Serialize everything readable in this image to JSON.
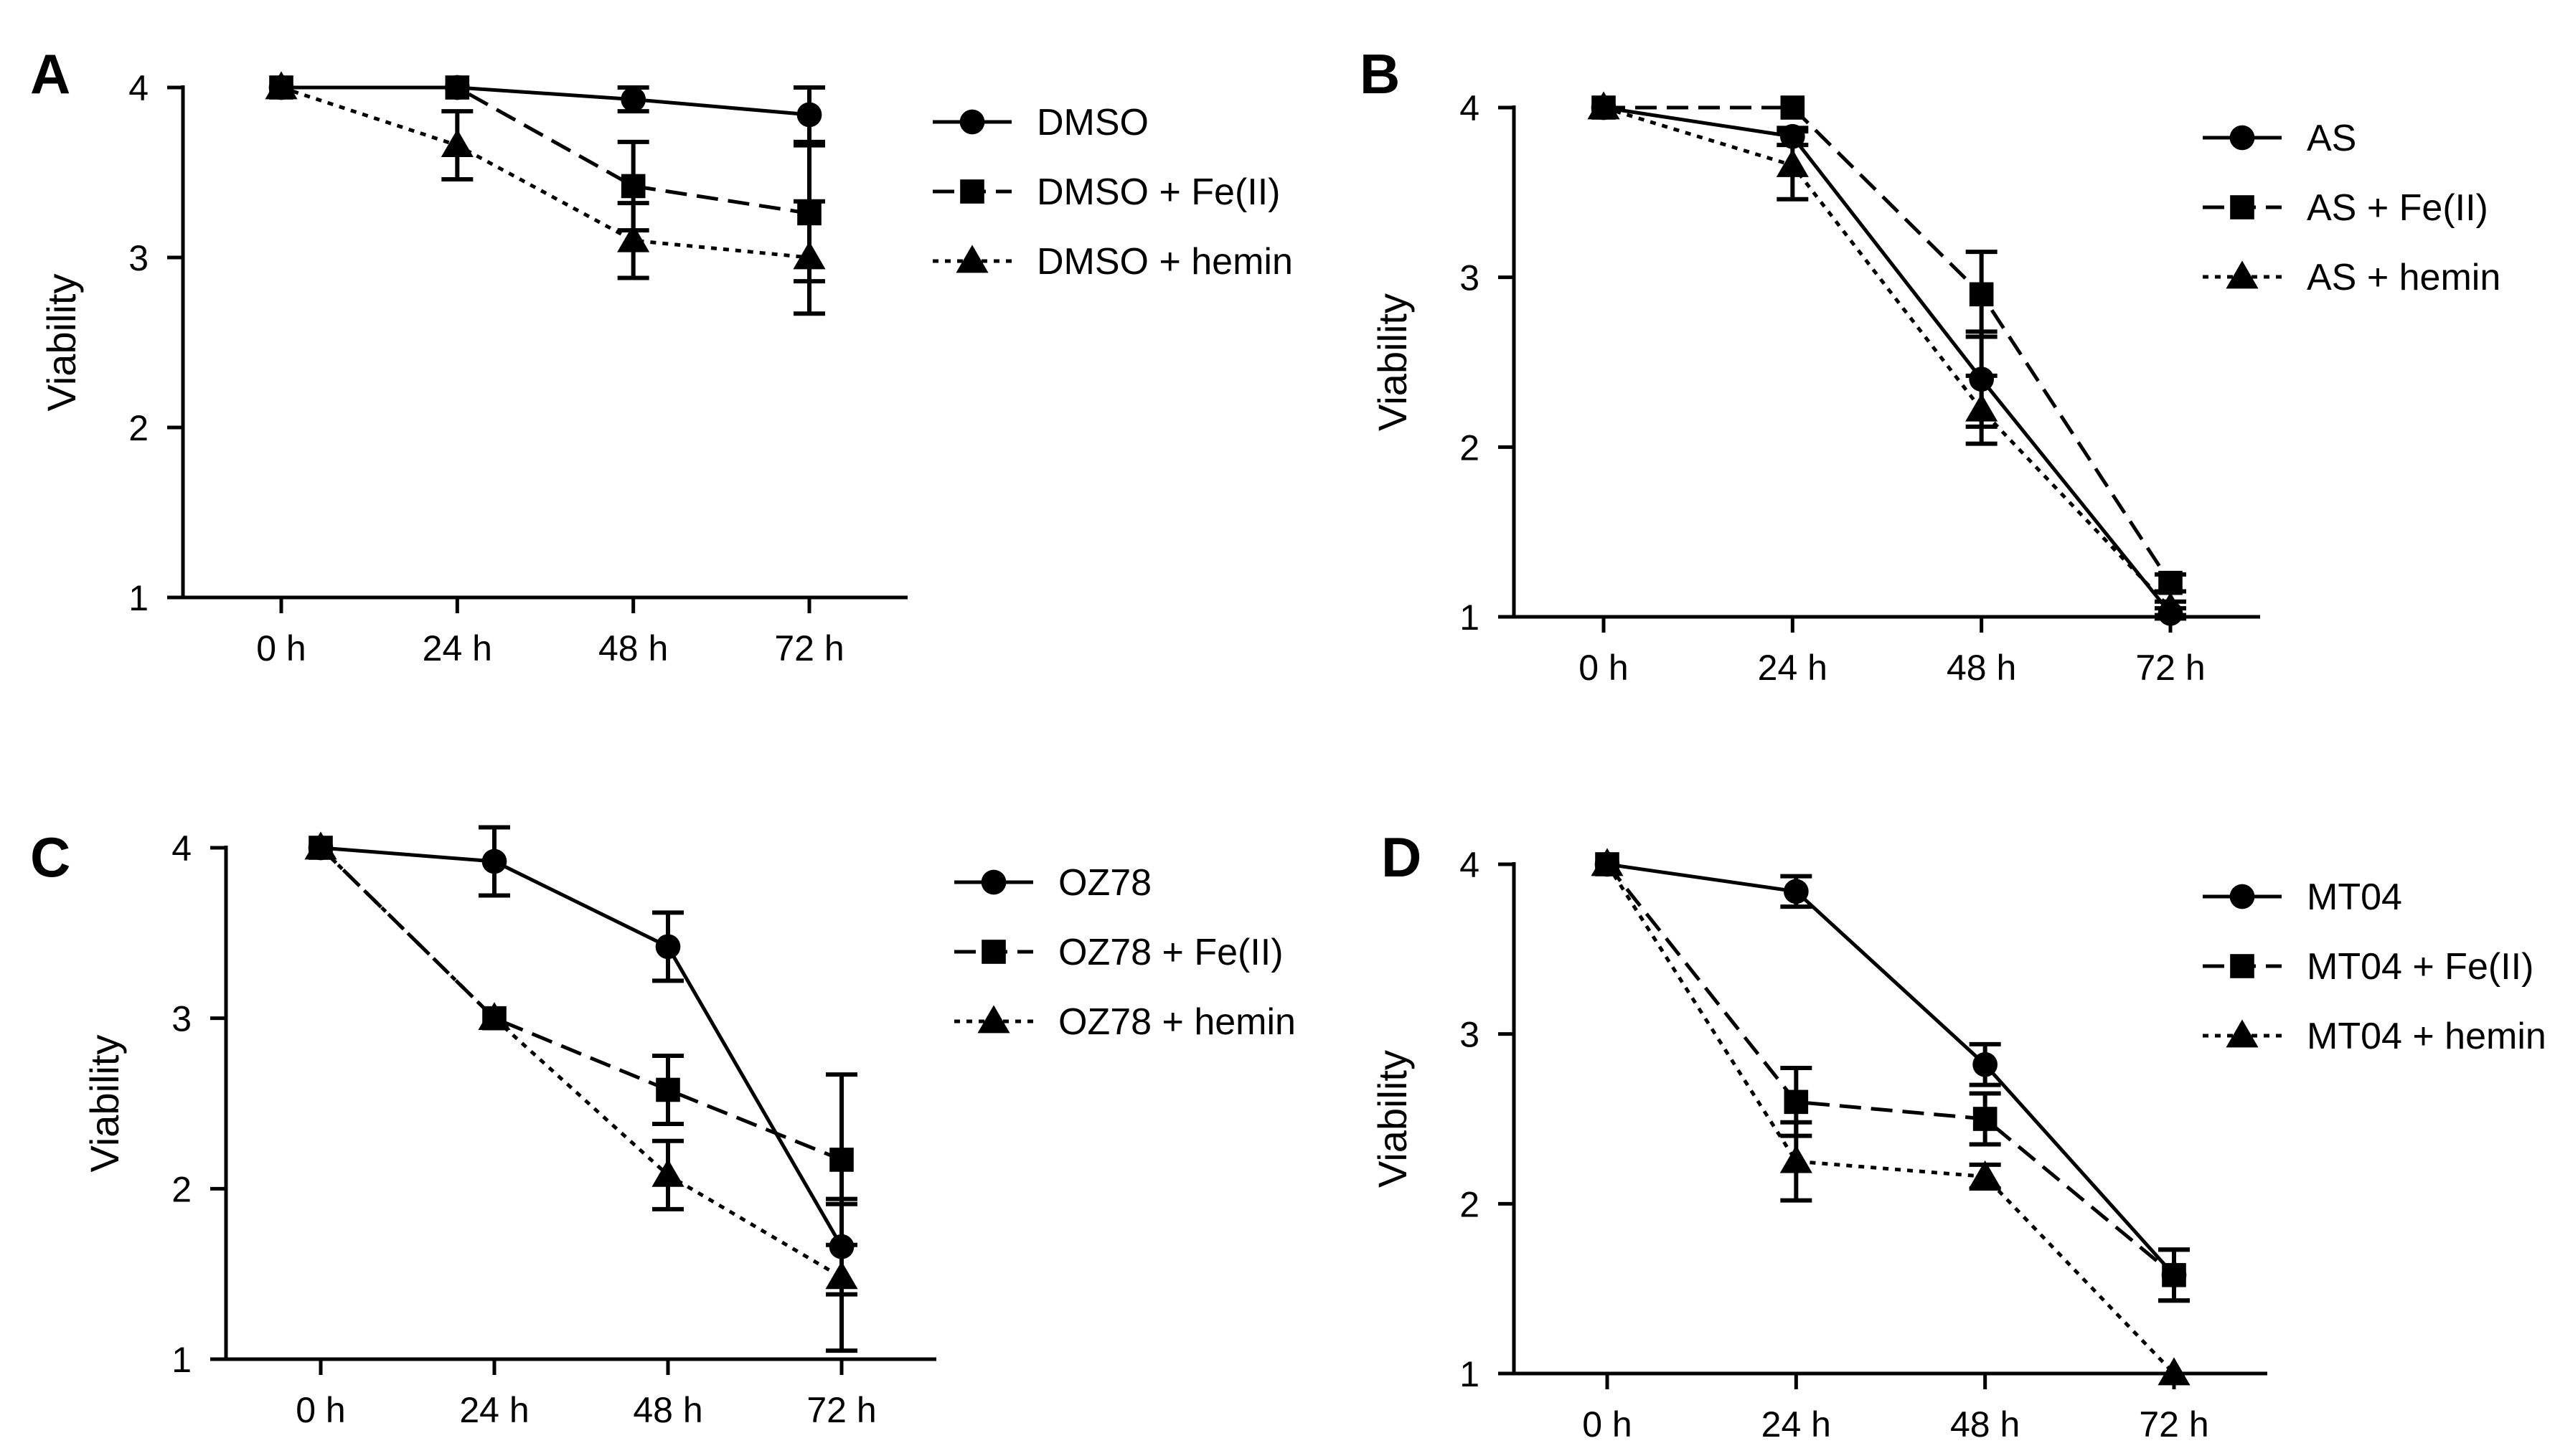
{
  "figure": {
    "panel_count": 4
  },
  "chart_data": [
    {
      "panel": "A",
      "type": "line",
      "categories": [
        "0 h",
        "24 h",
        "48 h",
        "72 h"
      ],
      "xlabel": "",
      "ylabel": "Viability",
      "ylim": [
        1,
        4
      ],
      "yticks": [
        "1",
        "2",
        "3",
        "4"
      ],
      "legend_position": "top-right",
      "series": [
        {
          "name": "DMSO",
          "marker": "circle",
          "dash": "solid",
          "values": [
            4.0,
            4.0,
            3.93,
            3.84
          ],
          "err": [
            0,
            0,
            0.07,
            0.16
          ]
        },
        {
          "name": "DMSO + Fe(II)",
          "marker": "square",
          "dash": "dashed",
          "values": [
            4.0,
            4.0,
            3.42,
            3.26
          ],
          "err": [
            0,
            0,
            0.26,
            0.4
          ]
        },
        {
          "name": "DMSO + hemin",
          "marker": "triangle",
          "dash": "dotted",
          "values": [
            4.0,
            3.66,
            3.1,
            3.0
          ],
          "err": [
            0,
            0.2,
            0.22,
            0.33
          ]
        }
      ]
    },
    {
      "panel": "B",
      "type": "line",
      "categories": [
        "0 h",
        "24 h",
        "48 h",
        "72 h"
      ],
      "xlabel": "",
      "ylabel": "Viability",
      "ylim": [
        1,
        4
      ],
      "yticks": [
        "1",
        "2",
        "3",
        "4"
      ],
      "legend_position": "top-right",
      "series": [
        {
          "name": "AS",
          "marker": "circle",
          "dash": "solid",
          "values": [
            4.0,
            3.83,
            2.4,
            1.02
          ],
          "err": [
            0,
            0.05,
            0.28,
            0.03
          ]
        },
        {
          "name": "AS + Fe(II)",
          "marker": "square",
          "dash": "dashed",
          "values": [
            4.0,
            4.0,
            2.9,
            1.2
          ],
          "err": [
            0,
            0,
            0.25,
            0.05
          ]
        },
        {
          "name": "AS + hemin",
          "marker": "triangle",
          "dash": "dotted",
          "values": [
            4.0,
            3.66,
            2.22,
            1.05
          ],
          "err": [
            0,
            0.2,
            0.2,
            0.04
          ]
        }
      ]
    },
    {
      "panel": "C",
      "type": "line",
      "categories": [
        "0 h",
        "24 h",
        "48 h",
        "72 h"
      ],
      "xlabel": "",
      "ylabel": "Viability",
      "ylim": [
        1,
        4
      ],
      "yticks": [
        "1",
        "2",
        "3",
        "4"
      ],
      "legend_position": "top-right",
      "series": [
        {
          "name": "OZ78",
          "marker": "circle",
          "dash": "solid",
          "values": [
            4.0,
            3.92,
            3.42,
            1.66
          ],
          "err": [
            0,
            0.2,
            0.2,
            0.28
          ]
        },
        {
          "name": "OZ78 + Fe(II)",
          "marker": "square",
          "dash": "dashed",
          "values": [
            4.0,
            3.0,
            2.58,
            2.17
          ],
          "err": [
            0,
            0,
            0.2,
            0.5
          ]
        },
        {
          "name": "OZ78 + hemin",
          "marker": "triangle",
          "dash": "dotted",
          "values": [
            4.0,
            3.0,
            2.08,
            1.48
          ],
          "err": [
            0,
            0,
            0.2,
            0.43
          ]
        }
      ]
    },
    {
      "panel": "D",
      "type": "line",
      "categories": [
        "0 h",
        "24 h",
        "48 h",
        "72 h"
      ],
      "xlabel": "",
      "ylabel": "Viability",
      "ylim": [
        1,
        4
      ],
      "yticks": [
        "1",
        "2",
        "3",
        "4"
      ],
      "legend_position": "top-right",
      "series": [
        {
          "name": "MT04",
          "marker": "circle",
          "dash": "solid",
          "values": [
            4.0,
            3.84,
            2.82,
            1.58
          ],
          "err": [
            0,
            0.09,
            0.12,
            0.15
          ]
        },
        {
          "name": "MT04 + Fe(II)",
          "marker": "square",
          "dash": "dashed",
          "values": [
            4.0,
            2.6,
            2.5,
            1.58
          ],
          "err": [
            0,
            0.2,
            0.15,
            0.15
          ]
        },
        {
          "name": "MT04 + hemin",
          "marker": "triangle",
          "dash": "dotted",
          "values": [
            4.0,
            2.25,
            2.16,
            1.0
          ],
          "err": [
            0,
            0.23,
            0.07,
            0
          ]
        }
      ]
    }
  ]
}
